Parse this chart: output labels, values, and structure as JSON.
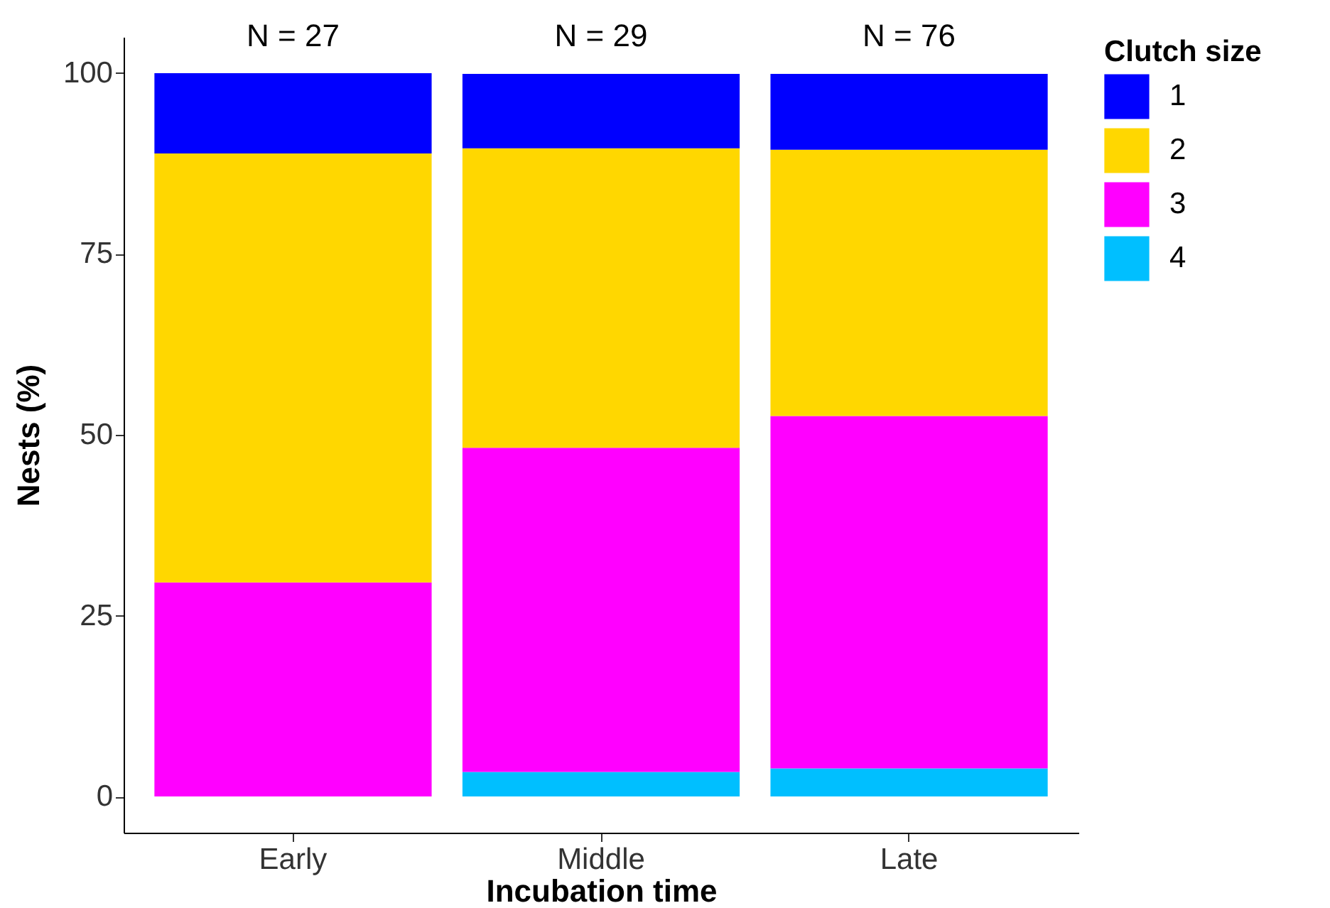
{
  "chart_data": {
    "type": "bar",
    "stacked": true,
    "xlabel": "Incubation time",
    "ylabel": "Nests (%)",
    "legend_title": "Clutch size",
    "legend": "right",
    "grid": false,
    "categories": [
      "Early",
      "Middle",
      "Late"
    ],
    "series": [
      {
        "name": "4",
        "color": "#00bfff",
        "values": [
          0,
          3.4,
          3.9
        ]
      },
      {
        "name": "3",
        "color": "#ff00ff",
        "values": [
          29.6,
          44.8,
          48.7
        ]
      },
      {
        "name": "2",
        "color": "#ffd700",
        "values": [
          59.3,
          41.4,
          36.8
        ]
      },
      {
        "name": "1",
        "color": "#0000ff",
        "values": [
          11.1,
          10.3,
          10.5
        ]
      }
    ],
    "ylim": [
      -5,
      105
    ],
    "yticks": [
      0,
      25,
      50,
      75,
      100
    ],
    "annotations": [
      {
        "text": "N = 27",
        "x": "Early",
        "y": 100
      },
      {
        "text": "N = 29",
        "x": "Middle",
        "y": 100
      },
      {
        "text": "N = 76",
        "x": "Late",
        "y": 100
      }
    ]
  }
}
